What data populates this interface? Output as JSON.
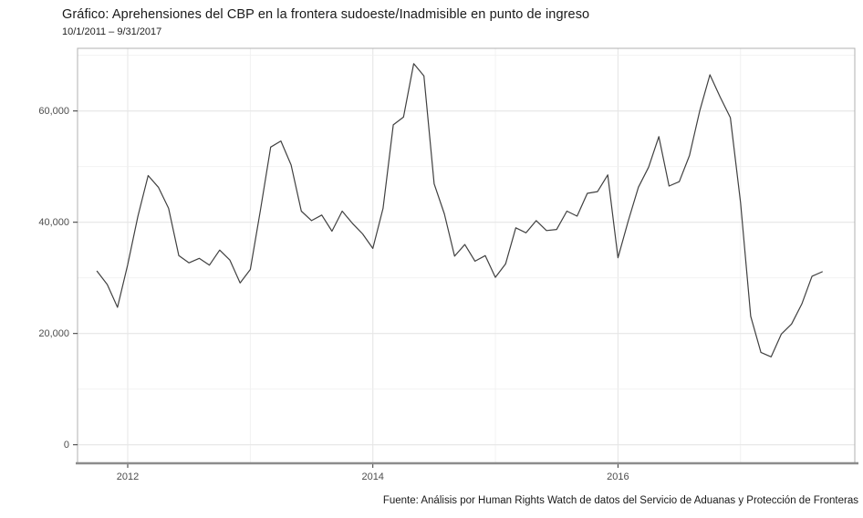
{
  "chart_data": {
    "type": "line",
    "title": "Gráfico: Aprehensiones del CBP en la frontera sudoeste/Inadmisible en punto de ingreso",
    "subtitle": "10/1/2011 – 9/31/2017",
    "source": "Fuente: Análisis por Human Rights Watch de datos del Servicio de Aduanas y Protección de Fronteras",
    "x_start": "2011-10",
    "x_end": "2017-09",
    "values": [
      31200,
      28800,
      24700,
      32400,
      41100,
      48400,
      46300,
      42500,
      34000,
      32700,
      33500,
      32300,
      35000,
      33200,
      29100,
      31500,
      42200,
      53500,
      54600,
      50300,
      42000,
      40300,
      41300,
      38400,
      42000,
      39800,
      37900,
      35300,
      42500,
      57500,
      58900,
      68500,
      66300,
      46900,
      41500,
      33900,
      36000,
      33000,
      34000,
      30100,
      32500,
      39000,
      38100,
      40300,
      38500,
      38700,
      42000,
      41100,
      45200,
      45500,
      48500,
      33600,
      40200,
      46300,
      49900,
      55400,
      46500,
      47300,
      52000,
      60000,
      66500,
      62500,
      58800,
      43500,
      23100,
      16600,
      15800,
      19900,
      21700,
      25300,
      30300,
      31100
    ],
    "x_axis": {
      "grid_years": [
        2012,
        2013,
        2014,
        2015,
        2016,
        2017
      ],
      "ticks": [
        {
          "year": 2012,
          "label": "2012"
        },
        {
          "year": 2014,
          "label": "2014"
        },
        {
          "year": 2016,
          "label": "2016"
        }
      ]
    },
    "y_axis": {
      "grid_values": [
        0,
        10000,
        20000,
        30000,
        40000,
        50000,
        60000,
        70000
      ],
      "ticks": [
        {
          "value": 0,
          "label": "0"
        },
        {
          "value": 20000,
          "label": "20,000"
        },
        {
          "value": 40000,
          "label": "40,000"
        },
        {
          "value": 60000,
          "label": "60,000"
        }
      ],
      "ylim": [
        -3400,
        71900
      ]
    },
    "grid": true,
    "legend": "none",
    "colors": {
      "line": "#404040",
      "grid_major": "#e6e6e6",
      "grid_minor": "#f0f0f0",
      "panel_border": "#b0b0b0",
      "axis_line": "#8c8c8c",
      "tick_mark": "#333333",
      "tick_label": "#4d4d4d"
    }
  }
}
